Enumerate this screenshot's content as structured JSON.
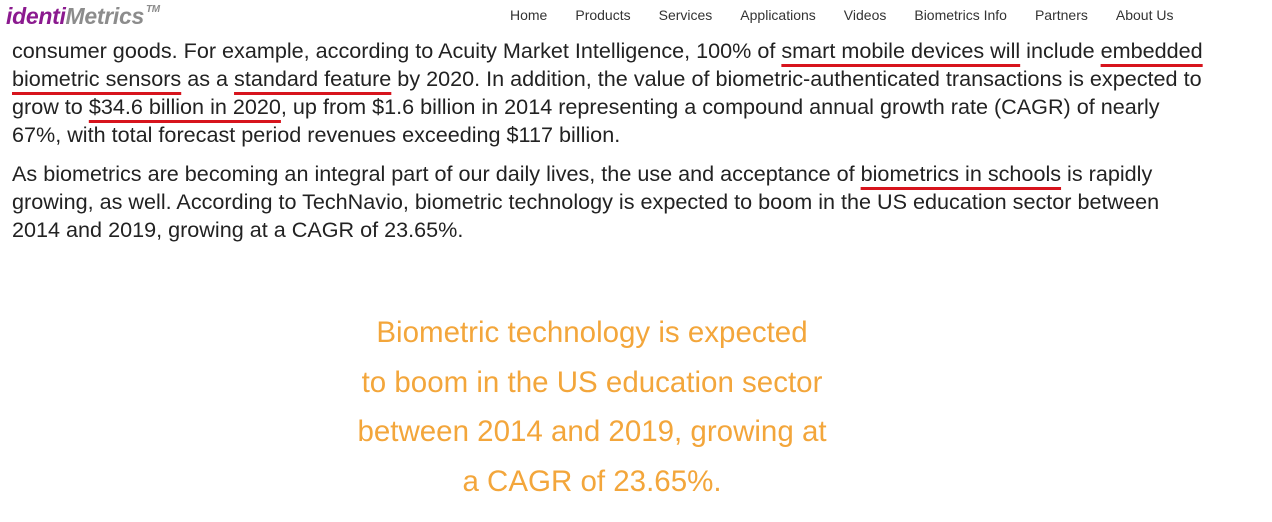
{
  "header": {
    "logo_part1": "identi",
    "logo_part2": "Metrics",
    "logo_tm": "TM",
    "nav": [
      "Home",
      "Products",
      "Services",
      "Applications",
      "Videos",
      "Biometrics Info",
      "Partners",
      "About Us"
    ]
  },
  "article": {
    "p1": {
      "s1": "consumer goods. For example, according to Acuity Market Intelligence, 100% of ",
      "h1": "smart mobile devices will",
      "s2": " include ",
      "h2": "embedded biometric sensors",
      "s3": " as a ",
      "h3": "standard feature",
      "s4": " by 2020. In addition, the value of biometric-authenticated transactions is expected to grow to ",
      "h4": "$34.6 billion in 2020",
      "s5": ", up from $1.6 billion in 2014 representing a compound annual growth rate (CAGR) of nearly 67%, with total forecast period revenues exceeding $117 billion."
    },
    "p2": {
      "s1": "As biometrics are becoming an integral part of our daily lives, the use and acceptance of ",
      "h1": "biometrics in schools",
      "s2": " is rapidly growing, as well.  According to TechNavio, biometric technology is expected to boom in the US education sector between 2014 and 2019, growing at a CAGR of 23.65%."
    }
  },
  "quote": {
    "lines": [
      "Biometric technology is expected",
      "to boom in the US education sector",
      "between 2014 and 2019, growing at",
      "a CAGR of 23.65%."
    ]
  },
  "colors": {
    "logo_purple": "#8b1a8f",
    "logo_gray": "#8c8c8c",
    "underline_red": "#d7141d",
    "quote_orange": "#f3a63b"
  }
}
